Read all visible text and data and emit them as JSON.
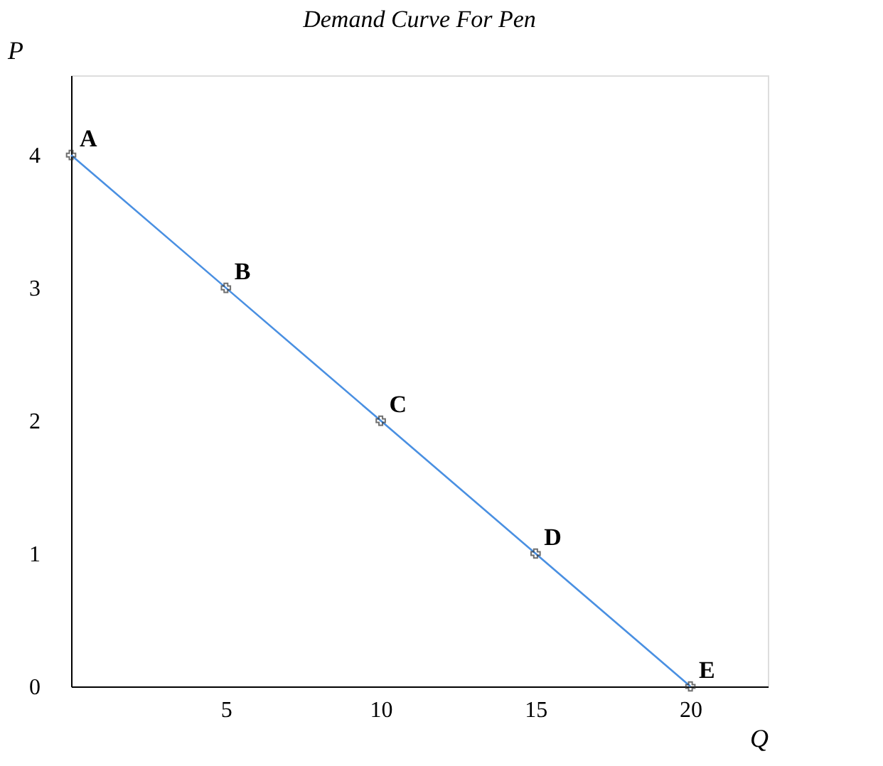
{
  "chart_data": {
    "type": "line",
    "title": "Demand Curve For Pen",
    "xlabel": "Q",
    "ylabel": "P",
    "x": [
      0,
      5,
      10,
      15,
      20
    ],
    "series": [
      {
        "color": "#4a90e2",
        "values": [
          4,
          3,
          2,
          1,
          0
        ]
      }
    ],
    "xlim": [
      0,
      22.5
    ],
    "ylim": [
      0,
      4.6
    ],
    "xticks": [
      5,
      10,
      15,
      20
    ],
    "yticks": [
      0,
      1,
      2,
      3,
      4
    ],
    "marker": "cross",
    "grid": false,
    "annotations": [
      {
        "text": "A",
        "x": 0,
        "y": 4
      },
      {
        "text": "B",
        "x": 5,
        "y": 3
      },
      {
        "text": "C",
        "x": 10,
        "y": 2
      },
      {
        "text": "D",
        "x": 15,
        "y": 1
      },
      {
        "text": "E",
        "x": 20,
        "y": 0
      }
    ]
  }
}
